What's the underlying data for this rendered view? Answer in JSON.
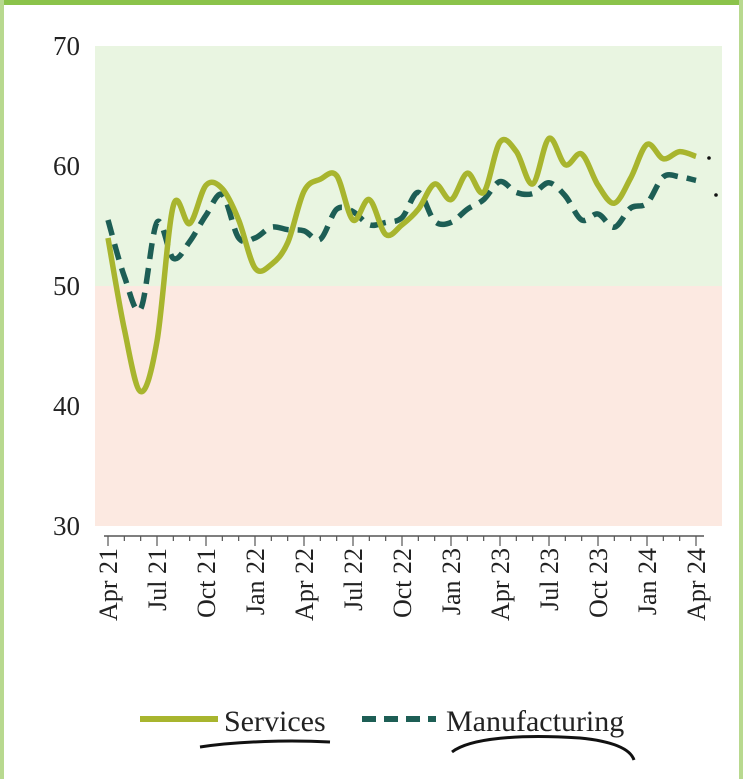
{
  "chart_data": {
    "type": "line",
    "title": "",
    "xlabel": "",
    "ylabel": "",
    "ylim": [
      30,
      70
    ],
    "yticks": [
      "30",
      "40",
      "50",
      "60",
      "70"
    ],
    "xtick_labels": [
      "Apr 21",
      "Jul 21",
      "Oct 21",
      "Jan 22",
      "Apr 22",
      "Jul 22",
      "Oct 22",
      "Jan 23",
      "Apr 23",
      "Jul 23",
      "Oct 23",
      "Jan 24",
      "Apr 24"
    ],
    "bands": [
      {
        "from": 50,
        "to": 70,
        "color": "#e9f5e1"
      },
      {
        "from": 30,
        "to": 50,
        "color": "#fce9e1"
      }
    ],
    "legend_position": "bottom",
    "series": [
      {
        "name": "Services",
        "style": "solid",
        "color": "#a8b52e",
        "values": [
          54.0,
          46.4,
          41.2,
          45.4,
          56.7,
          55.2,
          58.4,
          58.1,
          55.5,
          51.5,
          51.8,
          53.6,
          57.9,
          58.9,
          59.2,
          55.5,
          57.2,
          54.3,
          55.1,
          56.4,
          58.5,
          57.2,
          59.4,
          57.8,
          62.0,
          61.2,
          58.5,
          62.3,
          60.1,
          61.0,
          58.4,
          56.9,
          59.0,
          61.8,
          60.6,
          61.2,
          60.8
        ]
      },
      {
        "name": "Manufacturing",
        "style": "dashed",
        "color": "#1d5e55",
        "values": [
          55.5,
          50.8,
          48.1,
          55.3,
          52.3,
          53.7,
          55.9,
          57.6,
          54.0,
          54.0,
          54.9,
          54.7,
          54.6,
          53.9,
          56.4,
          56.2,
          55.1,
          55.3,
          55.7,
          57.8,
          55.4,
          55.3,
          56.4,
          57.2,
          58.7,
          57.8,
          57.7,
          58.6,
          57.5,
          55.5,
          56.0,
          54.9,
          56.5,
          56.9,
          59.1,
          59.1,
          58.8
        ]
      }
    ]
  }
}
